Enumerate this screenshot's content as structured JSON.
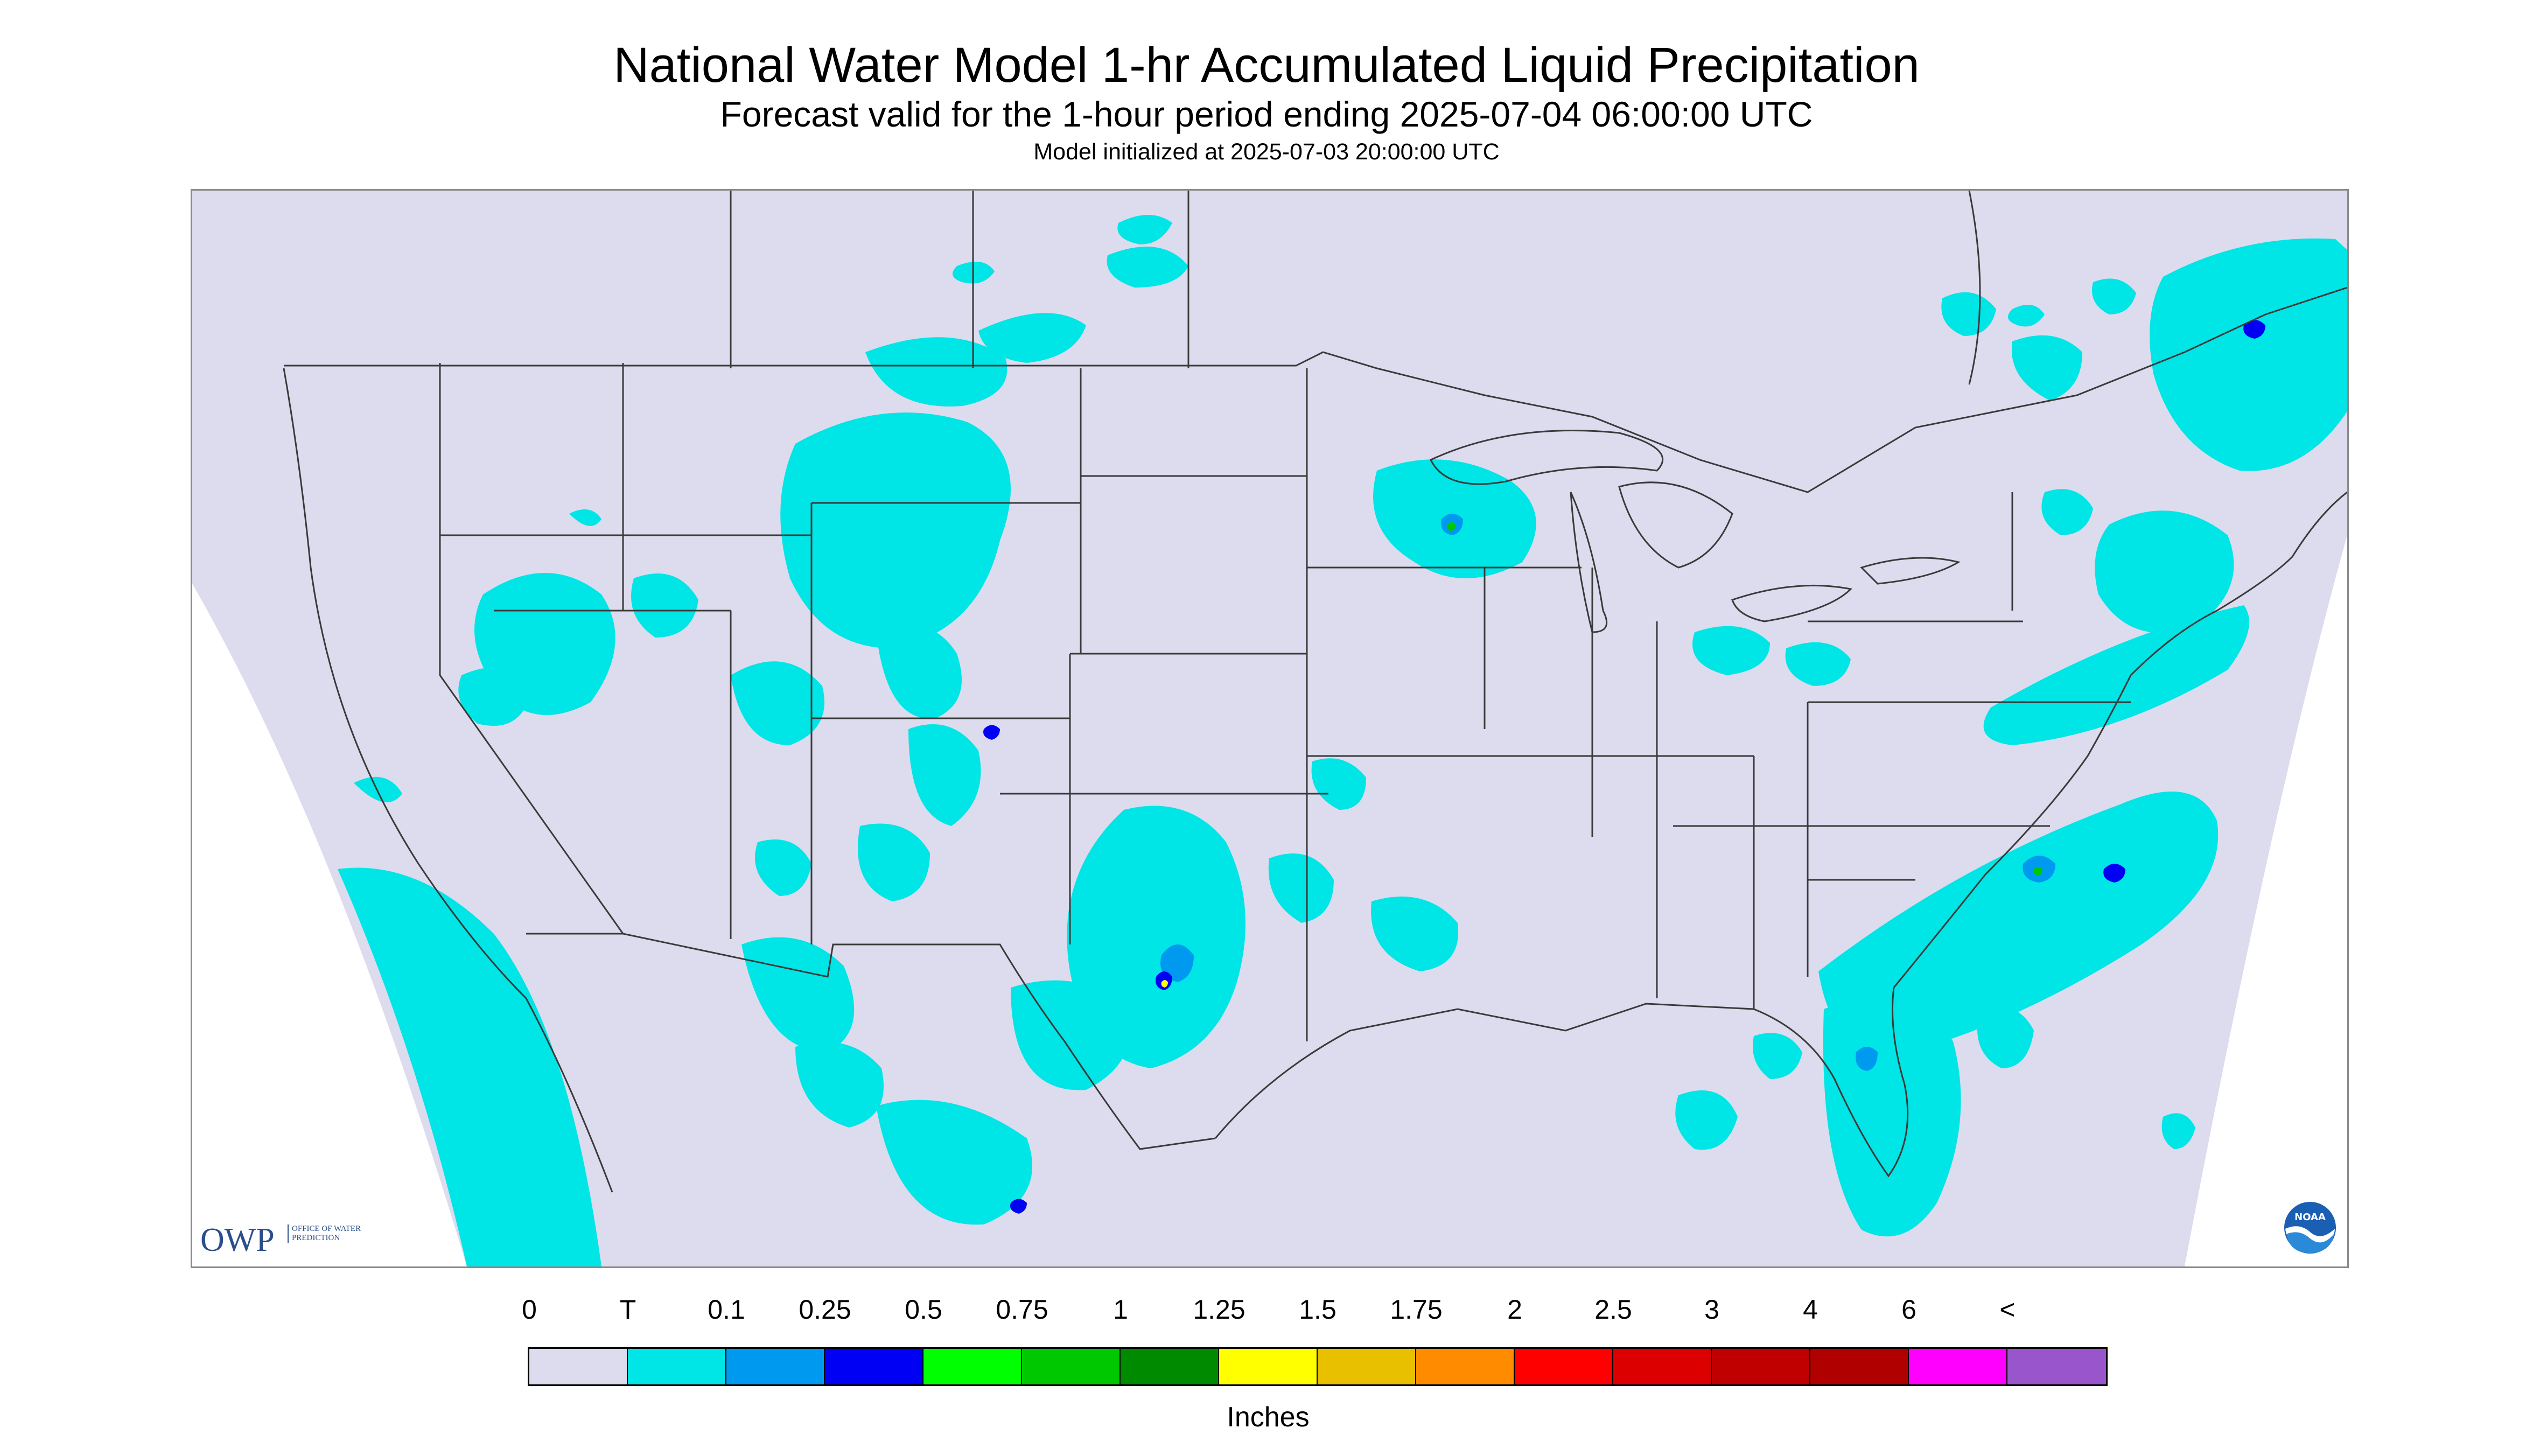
{
  "title": "National Water Model 1-hr Accumulated Liquid Precipitation",
  "subtitle": "Forecast valid for the 1-hour period ending 2025-07-04 06:00:00 UTC",
  "init_line": "Model initialized at 2025-07-03 20:00:00 UTC",
  "logos": {
    "owp_text": "OWP",
    "owp_subtext": "OFFICE OF WATER PREDICTION",
    "noaa_text": "NOAA"
  },
  "colors": {
    "map_background": "#dcdcee",
    "outside_domain": "#ffffff",
    "boundaries": "#3a3a3a",
    "precip_trace": "#00e5e5"
  },
  "legend": {
    "units": "Inches",
    "tick_labels": [
      "0",
      "T",
      "0.1",
      "0.25",
      "0.5",
      "0.75",
      "1",
      "1.25",
      "1.5",
      "1.75",
      "2",
      "2.5",
      "3",
      "4",
      "6",
      "<"
    ],
    "bins": [
      {
        "color": "#dcdcee"
      },
      {
        "color": "#00e5e5"
      },
      {
        "color": "#0099f0"
      },
      {
        "color": "#0000f5"
      },
      {
        "color": "#00ff00"
      },
      {
        "color": "#00c800"
      },
      {
        "color": "#008a00"
      },
      {
        "color": "#ffff00"
      },
      {
        "color": "#e8c000"
      },
      {
        "color": "#ff8c00"
      },
      {
        "color": "#ff0000"
      },
      {
        "color": "#dd0000"
      },
      {
        "color": "#c00000"
      },
      {
        "color": "#b00000"
      },
      {
        "color": "#ff00ff"
      },
      {
        "color": "#9955cc"
      }
    ]
  }
}
